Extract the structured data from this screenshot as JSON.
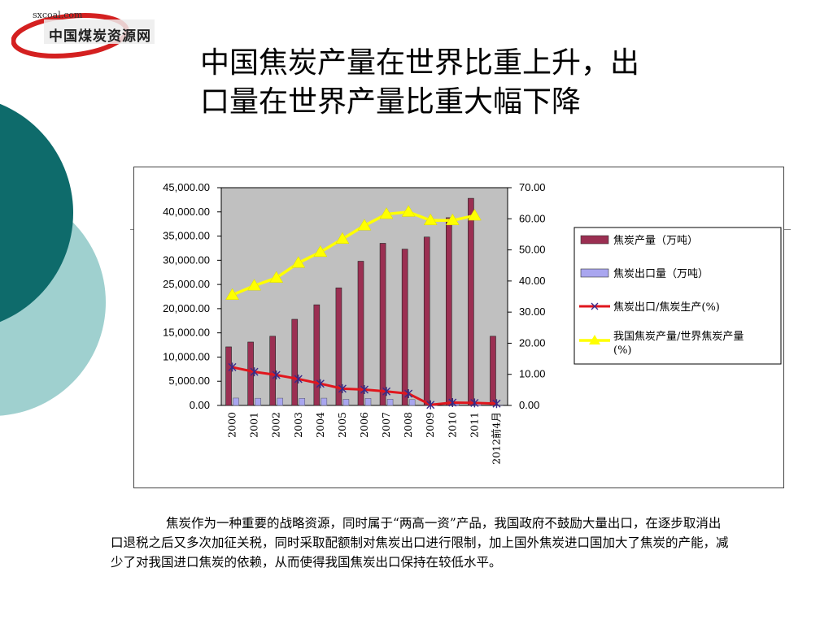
{
  "logo": {
    "url_text": "sxcoal.com",
    "name_text": "中国煤炭资源网"
  },
  "slide": {
    "title_line1": "中国焦炭产量在世界比重上升，出",
    "title_line2": "口量在世界产量比重大幅下降",
    "paragraph": "焦炭作为一种重要的战略资源，同时属于“两高一资”产品，我国政府不鼓励大量出口，在逐步取消出口退税之后又多次加征关税，同时采取配额制对焦炭出口进行限制，加上国外焦炭进口国加大了焦炭的产能，减少了对我国进口焦炭的依赖，从而使得我国焦炭出口保持在较低水平。"
  },
  "colors": {
    "teal_dark": "#0e6b6b",
    "teal_light": "#9fd0cf",
    "bar_production": "#9b2f52",
    "bar_export": "#a9a6ef",
    "line_ratio": "#e0161d",
    "line_world": "#ffff00",
    "plot_bg": "#c0c0c0"
  },
  "chart_data": {
    "type": "bar",
    "categories": [
      "2000",
      "2001",
      "2002",
      "2003",
      "2004",
      "2005",
      "2006",
      "2007",
      "2008",
      "2009",
      "2010",
      "2011",
      "2012前4月"
    ],
    "left_ylim": [
      0,
      45000
    ],
    "right_ylim": [
      0,
      70
    ],
    "left_ticks": [
      "0.00",
      "5,000.00",
      "10,000.00",
      "15,000.00",
      "20,000.00",
      "25,000.00",
      "30,000.00",
      "35,000.00",
      "40,000.00",
      "45,000.00"
    ],
    "right_ticks": [
      "0.00",
      "10.00",
      "20.00",
      "30.00",
      "40.00",
      "50.00",
      "60.00",
      "70.00"
    ],
    "series": [
      {
        "name": "焦炭产量（万吨）",
        "type": "bar",
        "axis": "left",
        "values": [
          12100,
          13100,
          14300,
          17800,
          20800,
          24300,
          29800,
          33500,
          32300,
          34800,
          38800,
          42800,
          14300
        ]
      },
      {
        "name": "焦炭出口量（万吨）",
        "type": "bar",
        "axis": "left",
        "values": [
          1520,
          1480,
          1500,
          1470,
          1500,
          1270,
          1450,
          1290,
          1210,
          50,
          330,
          350,
          120
        ]
      },
      {
        "name": "焦炭出口/焦炭生产(%)",
        "type": "line",
        "axis": "right",
        "values": [
          12.3,
          10.8,
          9.8,
          8.5,
          7.0,
          5.4,
          5.1,
          4.5,
          3.8,
          0.2,
          0.9,
          0.8,
          0.6
        ]
      },
      {
        "name": "我国焦炭产量/世界焦炭产量(%)",
        "type": "line",
        "axis": "right",
        "values": [
          35.5,
          38.5,
          41.0,
          45.8,
          49.3,
          53.5,
          57.8,
          61.5,
          62.2,
          59.5,
          59.5,
          61.0,
          null
        ]
      }
    ],
    "legend_position": "right"
  }
}
